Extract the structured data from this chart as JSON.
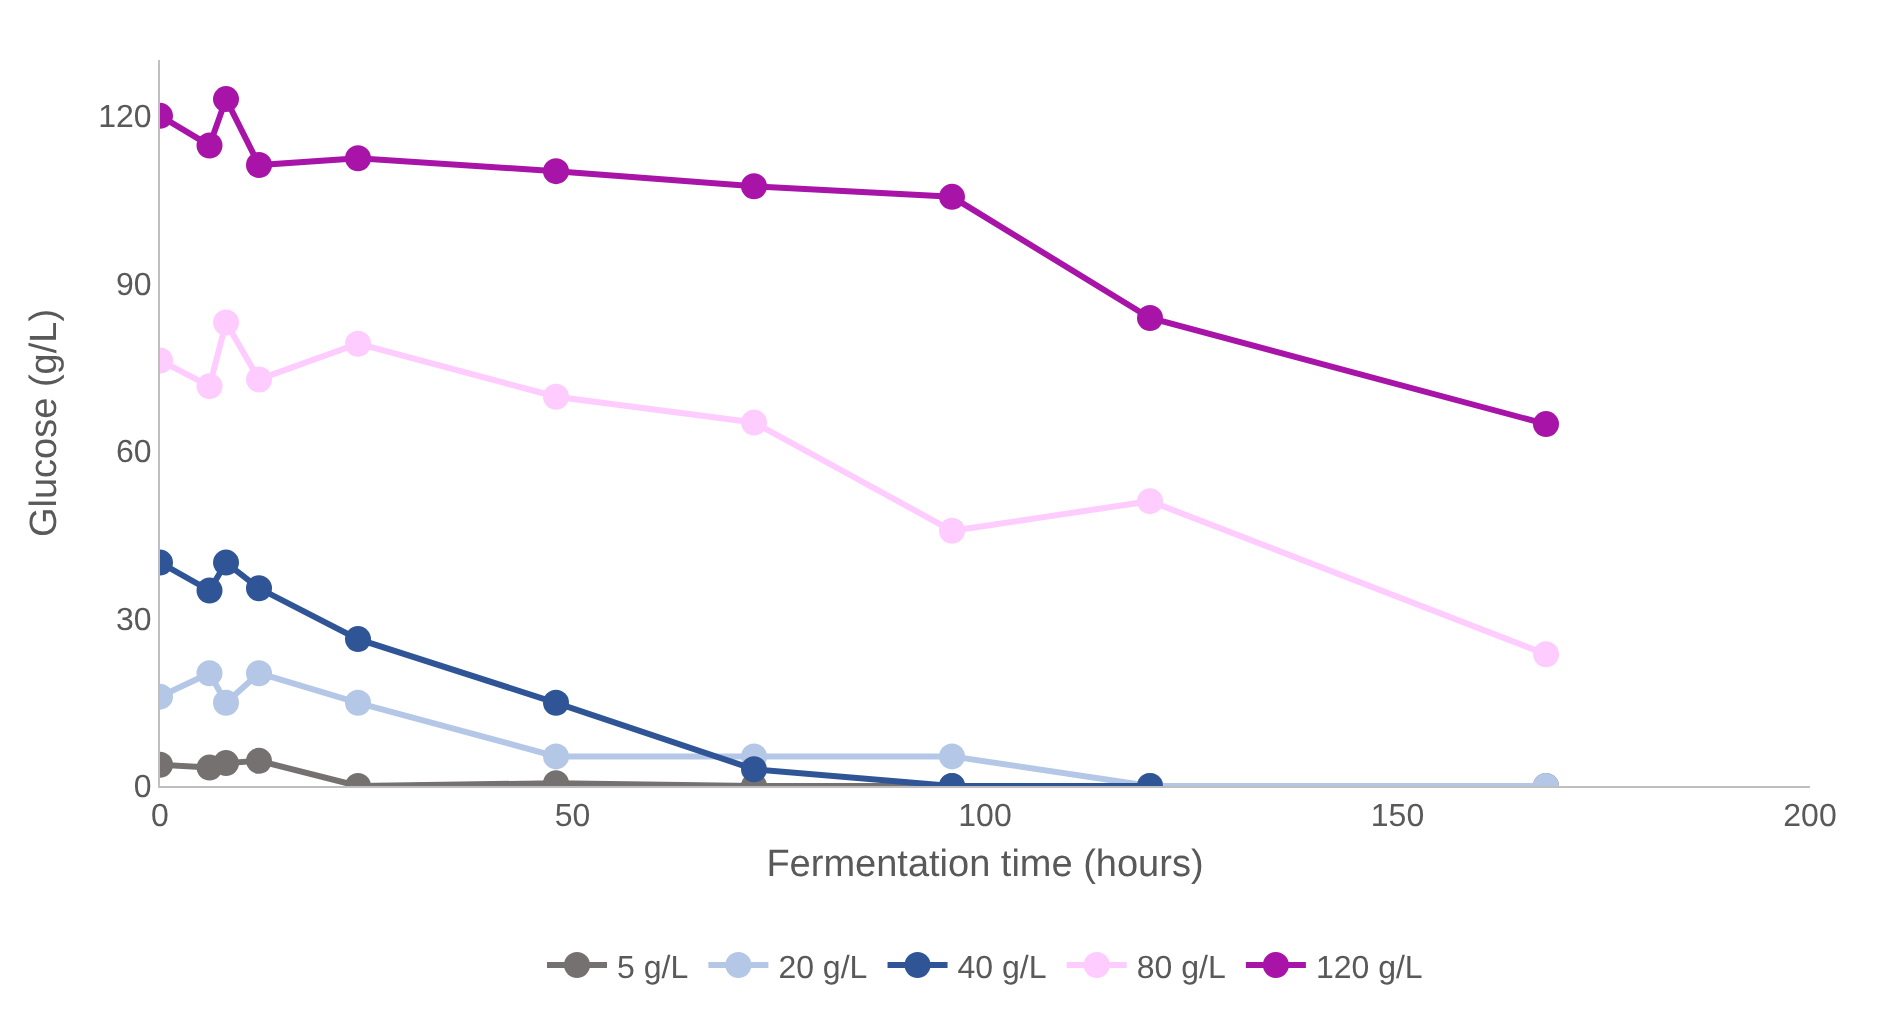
{
  "chart_data": {
    "type": "line",
    "xlabel": "Fermentation time (hours)",
    "ylabel": "Glucose (g/L)",
    "x": [
      0,
      6,
      8,
      12,
      24,
      48,
      72,
      96,
      120,
      168
    ],
    "series": [
      {
        "name": "5 g/L",
        "color": "#767171",
        "values": [
          3.8,
          3.3,
          4.1,
          4.5,
          0,
          0.5,
          0,
          0,
          0,
          0
        ]
      },
      {
        "name": "20 g/L",
        "color": "#b4c7e7",
        "values": [
          16,
          20.2,
          14.9,
          20.2,
          14.9,
          5.3,
          5.3,
          5.3,
          0,
          0
        ]
      },
      {
        "name": "40 g/L",
        "color": "#2f5597",
        "values": [
          40,
          35,
          40,
          35.4,
          26.3,
          14.9,
          3,
          0,
          0,
          null
        ]
      },
      {
        "name": "80 g/L",
        "color": "#ffccff",
        "values": [
          76.2,
          71.6,
          83,
          72.8,
          79.2,
          69.7,
          65.1,
          45.7,
          51,
          23.6
        ]
      },
      {
        "name": "120 g/L",
        "color": "#a814a8",
        "values": [
          120,
          114.7,
          123,
          111.2,
          112.4,
          110.1,
          107.4,
          105.5,
          83.8,
          64.8
        ]
      }
    ],
    "xlim": [
      0,
      200
    ],
    "xticks": [
      0,
      50,
      100,
      150,
      200
    ],
    "ylim": [
      0,
      130
    ],
    "yticks": [
      0,
      30,
      60,
      90,
      120
    ],
    "legend": "bottom",
    "marker": "circle",
    "line_style": "solid"
  }
}
